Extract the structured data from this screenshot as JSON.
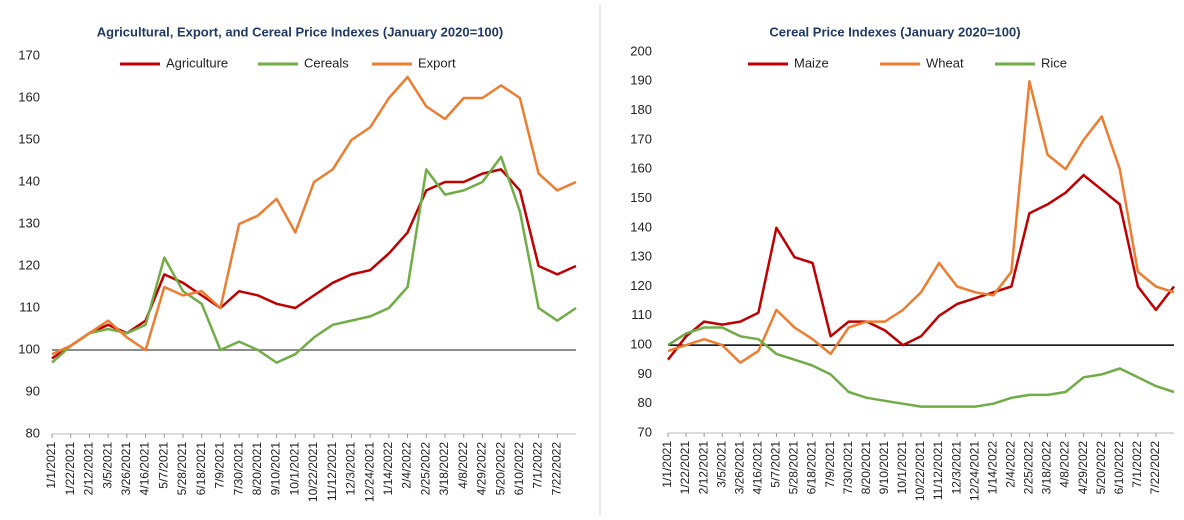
{
  "chart_data": [
    {
      "type": "line",
      "title": "Agricultural, Export, and Cereal Price Indexes (January 2020=100)",
      "categories": [
        "1/1/2021",
        "1/22/2021",
        "2/12/2021",
        "3/5/2021",
        "3/26/2021",
        "4/16/2021",
        "5/7/2021",
        "5/28/2021",
        "6/18/2021",
        "7/9/2021",
        "7/30/2021",
        "8/20/2021",
        "9/10/2021",
        "10/1/2021",
        "10/22/2021",
        "11/12/2021",
        "12/3/2021",
        "12/24/2021",
        "1/14/2022",
        "2/4/2022",
        "2/25/2022",
        "3/18/2022",
        "4/8/2022",
        "4/29/2022",
        "5/20/2022",
        "6/10/2022",
        "7/1/2022",
        "7/22/2022",
        null
      ],
      "series": [
        {
          "name": "Agriculture",
          "color": "#c00000",
          "values": [
            98,
            101,
            104,
            106,
            104,
            107,
            118,
            116,
            113,
            110,
            114,
            113,
            111,
            110,
            113,
            116,
            118,
            119,
            123,
            128,
            138,
            140,
            140,
            142,
            143,
            138,
            120,
            118,
            120
          ]
        },
        {
          "name": "Cereals",
          "color": "#70ad47",
          "values": [
            97,
            101,
            104,
            105,
            104,
            106,
            122,
            114,
            111,
            100,
            102,
            100,
            97,
            99,
            103,
            106,
            107,
            108,
            110,
            115,
            143,
            137,
            138,
            140,
            146,
            133,
            110,
            107,
            110
          ]
        },
        {
          "name": "Export",
          "color": "#ed7d31",
          "values": [
            99,
            101,
            104,
            107,
            103,
            100,
            115,
            113,
            114,
            110,
            130,
            132,
            136,
            128,
            140,
            143,
            150,
            153,
            160,
            165,
            158,
            155,
            160,
            160,
            163,
            160,
            142,
            138,
            140
          ]
        }
      ],
      "ylim": [
        80,
        170
      ],
      "yticks": [
        80,
        90,
        100,
        110,
        120,
        130,
        140,
        150,
        160,
        170
      ],
      "hline": 100
    },
    {
      "type": "line",
      "title": "Cereal Price Indexes (January 2020=100)",
      "categories": [
        "1/1/2021",
        "1/22/2021",
        "2/12/2021",
        "3/5/2021",
        "3/26/2021",
        "4/16/2021",
        "5/7/2021",
        "5/28/2021",
        "6/18/2021",
        "7/9/2021",
        "7/30/2021",
        "8/20/2021",
        "9/10/2021",
        "10/1/2021",
        "10/22/2021",
        "11/12/2021",
        "12/3/2021",
        "12/24/2021",
        "1/14/2022",
        "2/4/2022",
        "2/25/2022",
        "3/18/2022",
        "4/8/2022",
        "4/29/2022",
        "5/20/2022",
        "6/10/2022",
        "7/1/2022",
        "7/22/2022",
        null
      ],
      "series": [
        {
          "name": "Maize",
          "color": "#c00000",
          "values": [
            95,
            103,
            108,
            107,
            108,
            111,
            140,
            130,
            128,
            103,
            108,
            108,
            105,
            100,
            103,
            110,
            114,
            116,
            118,
            120,
            145,
            148,
            152,
            158,
            153,
            148,
            120,
            112,
            120
          ]
        },
        {
          "name": "Wheat",
          "color": "#ed7d31",
          "values": [
            98,
            100,
            102,
            100,
            94,
            98,
            112,
            106,
            102,
            97,
            106,
            108,
            108,
            112,
            118,
            128,
            120,
            118,
            117,
            125,
            190,
            165,
            160,
            170,
            178,
            160,
            125,
            120,
            118
          ]
        },
        {
          "name": "Rice",
          "color": "#70ad47",
          "values": [
            100,
            104,
            106,
            106,
            103,
            102,
            97,
            95,
            93,
            90,
            84,
            82,
            81,
            80,
            79,
            79,
            79,
            79,
            80,
            82,
            83,
            83,
            84,
            89,
            90,
            92,
            89,
            86,
            84
          ]
        }
      ],
      "ylim": [
        70,
        200
      ],
      "yticks": [
        70,
        80,
        90,
        100,
        110,
        120,
        130,
        140,
        150,
        160,
        170,
        180,
        190,
        200
      ],
      "hline": 100
    }
  ]
}
